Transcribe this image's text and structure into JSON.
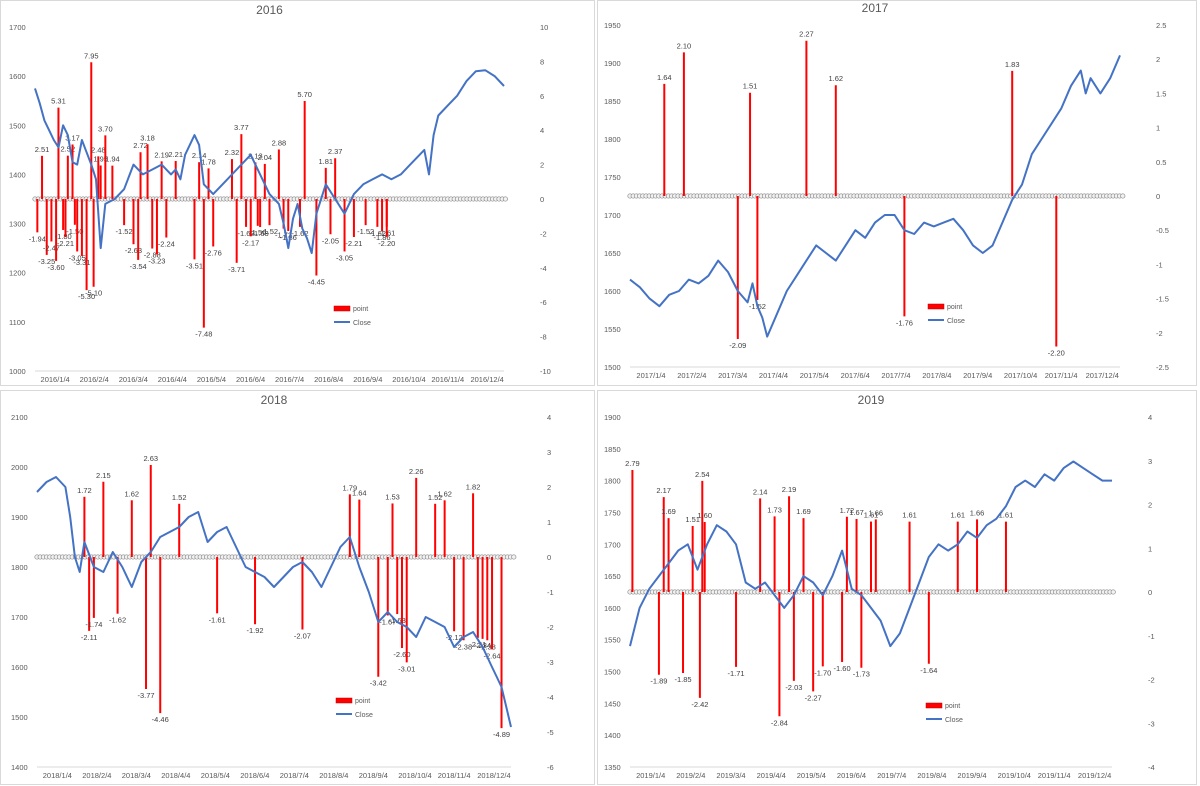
{
  "chart_data": [
    {
      "type": "line",
      "title": "2016",
      "x_ticks": [
        "2016/1/4",
        "2016/2/4",
        "2016/3/4",
        "2016/4/4",
        "2016/5/4",
        "2016/6/4",
        "2016/7/4",
        "2016/8/4",
        "2016/9/4",
        "2016/10/4",
        "2016/11/4",
        "2016/12/4"
      ],
      "y_left_ticks": [
        "1000",
        "1100",
        "1200",
        "1300",
        "1400",
        "1500",
        "1600",
        "1700"
      ],
      "y_right_ticks": [
        "-10",
        "-8",
        "-6",
        "-4",
        "-2",
        "0",
        "2",
        "4",
        "6",
        "8",
        "10"
      ],
      "ylim_left": [
        1000,
        1700
      ],
      "ylim_right": [
        -10,
        10
      ],
      "legend": [
        "point",
        "Close"
      ],
      "legend_position": "bottom-right",
      "colors": {
        "point": "#ff0000",
        "Close": "#4472c4"
      },
      "close_series": {
        "name": "Close",
        "x": [
          0,
          0.01,
          0.02,
          0.03,
          0.04,
          0.05,
          0.06,
          0.07,
          0.08,
          0.09,
          0.1,
          0.11,
          0.12,
          0.13,
          0.14,
          0.15,
          0.17,
          0.19,
          0.21,
          0.23,
          0.25,
          0.27,
          0.29,
          0.3,
          0.31,
          0.32,
          0.33,
          0.34,
          0.35,
          0.36,
          0.38,
          0.4,
          0.42,
          0.44,
          0.46,
          0.48,
          0.5,
          0.52,
          0.53,
          0.54,
          0.55,
          0.56,
          0.57,
          0.58,
          0.59,
          0.6,
          0.62,
          0.64,
          0.66,
          0.68,
          0.7,
          0.72,
          0.74,
          0.76,
          0.78,
          0.8,
          0.82,
          0.83,
          0.84,
          0.85,
          0.86,
          0.88,
          0.9,
          0.92,
          0.94,
          0.96,
          0.98,
          1
        ],
        "values": [
          1575,
          1545,
          1510,
          1490,
          1470,
          1455,
          1500,
          1480,
          1425,
          1420,
          1470,
          1445,
          1420,
          1390,
          1250,
          1340,
          1350,
          1370,
          1420,
          1400,
          1410,
          1420,
          1400,
          1410,
          1390,
          1440,
          1460,
          1480,
          1460,
          1380,
          1360,
          1380,
          1400,
          1420,
          1440,
          1400,
          1360,
          1340,
          1300,
          1250,
          1310,
          1340,
          1290,
          1270,
          1240,
          1320,
          1380,
          1350,
          1320,
          1360,
          1380,
          1390,
          1400,
          1390,
          1400,
          1420,
          1440,
          1450,
          1400,
          1480,
          1520,
          1540,
          1560,
          1590,
          1610,
          1612,
          1600,
          1580
        ]
      },
      "point_series": {
        "name": "point",
        "x": [
          0.005,
          0.015,
          0.025,
          0.035,
          0.045,
          0.05,
          0.06,
          0.065,
          0.07,
          0.08,
          0.085,
          0.09,
          0.1,
          0.11,
          0.12,
          0.125,
          0.135,
          0.14,
          0.15,
          0.165,
          0.19,
          0.21,
          0.22,
          0.225,
          0.24,
          0.25,
          0.26,
          0.27,
          0.28,
          0.3,
          0.34,
          0.35,
          0.36,
          0.37,
          0.38,
          0.42,
          0.43,
          0.44,
          0.45,
          0.46,
          0.47,
          0.475,
          0.48,
          0.49,
          0.5,
          0.52,
          0.53,
          0.54,
          0.565,
          0.575,
          0.6,
          0.62,
          0.63,
          0.64,
          0.66,
          0.68,
          0.705,
          0.73,
          0.74,
          0.75,
          0.75
        ],
        "values": [
          -1.94,
          2.51,
          -3.25,
          -2.47,
          -3.6,
          5.31,
          -1.8,
          -2.21,
          2.52,
          3.17,
          -1.5,
          -3.05,
          -3.31,
          -5.3,
          7.95,
          -5.1,
          2.48,
          1.95,
          3.7,
          1.94,
          -1.52,
          -2.63,
          -3.54,
          2.72,
          3.18,
          -2.88,
          -3.23,
          2.19,
          -2.24,
          2.21,
          -3.51,
          2.14,
          -7.48,
          1.78,
          -2.76,
          2.32,
          -3.71,
          3.77,
          -1.62,
          -2.17,
          2.13,
          -1.56,
          -1.63,
          2.04,
          -1.52,
          2.88,
          -1.72,
          -1.86,
          -1.62,
          5.7,
          -4.45,
          1.81,
          -2.05,
          2.37,
          -3.05,
          -2.21,
          -1.52,
          -1.62,
          -1.86,
          -1.61,
          -2.2
        ],
        "labels": [
          "-1.94",
          "2.51",
          "-3.25",
          "-2.47",
          "-3.60",
          "5.31",
          "-1.80",
          "-2.21",
          "2.52",
          "3.17",
          "-1.50",
          "-3.05",
          "-3.31",
          "-5.30",
          "7.95",
          "-5.10",
          "2.48",
          "1.95",
          "3.70",
          "1.94",
          "-1.52",
          "-2.63",
          "-3.54",
          "2.72",
          "3.18",
          "-2.88",
          "-3.23",
          "2.19",
          "-2.24",
          "2.21",
          "-3.51",
          "2.14",
          "-7.48",
          "1.78",
          "-2.76",
          "2.32",
          "-3.71",
          "3.77",
          "-1.62",
          "-2.17",
          "2.13",
          "-1.56",
          "-1.63",
          "2.04",
          "-1.52",
          "2.88",
          "-1.72",
          "-1.86",
          "-1.62",
          "5.70",
          "-4.45",
          "1.81",
          "-2.05",
          "2.37",
          "-3.05",
          "-2.21",
          "-1.52",
          "-1.62",
          "-1.86",
          "-1.61",
          "-2.20"
        ]
      }
    },
    {
      "type": "line",
      "title": "2017",
      "x_ticks": [
        "2017/1/4",
        "2017/2/4",
        "2017/3/4",
        "2017/4/4",
        "2017/5/4",
        "2017/6/4",
        "2017/7/4",
        "2017/8/4",
        "2017/9/4",
        "2017/10/4",
        "2017/11/4",
        "2017/12/4"
      ],
      "y_left_ticks": [
        "1500",
        "1550",
        "1600",
        "1650",
        "1700",
        "1750",
        "1800",
        "1850",
        "1900",
        "1950"
      ],
      "y_right_ticks": [
        "-2.5",
        "-2",
        "-1.5",
        "-1",
        "-0.5",
        "0",
        "0.5",
        "1",
        "1.5",
        "2",
        "2.5"
      ],
      "ylim_left": [
        1500,
        1950
      ],
      "ylim_right": [
        -2.5,
        2.5
      ],
      "legend": [
        "point",
        "Close"
      ],
      "legend_position": "bottom-right",
      "colors": {
        "point": "#ff0000",
        "Close": "#4472c4"
      },
      "close_series": {
        "name": "Close",
        "x": [
          0,
          0.02,
          0.04,
          0.06,
          0.08,
          0.1,
          0.12,
          0.14,
          0.16,
          0.18,
          0.2,
          0.22,
          0.24,
          0.25,
          0.26,
          0.27,
          0.28,
          0.3,
          0.32,
          0.34,
          0.36,
          0.38,
          0.4,
          0.42,
          0.44,
          0.46,
          0.48,
          0.5,
          0.52,
          0.54,
          0.56,
          0.58,
          0.6,
          0.62,
          0.64,
          0.66,
          0.68,
          0.7,
          0.72,
          0.74,
          0.76,
          0.78,
          0.8,
          0.82,
          0.84,
          0.86,
          0.88,
          0.9,
          0.92,
          0.93,
          0.94,
          0.96,
          0.98,
          1
        ],
        "values": [
          1615,
          1605,
          1590,
          1580,
          1595,
          1600,
          1615,
          1610,
          1620,
          1640,
          1625,
          1600,
          1585,
          1610,
          1580,
          1565,
          1540,
          1570,
          1600,
          1620,
          1640,
          1660,
          1650,
          1640,
          1660,
          1680,
          1670,
          1690,
          1700,
          1700,
          1680,
          1675,
          1690,
          1685,
          1690,
          1695,
          1680,
          1660,
          1650,
          1660,
          1690,
          1720,
          1740,
          1780,
          1800,
          1820,
          1840,
          1870,
          1890,
          1860,
          1880,
          1860,
          1880,
          1910
        ]
      },
      "point_series": {
        "name": "point",
        "x": [
          0.07,
          0.11,
          0.22,
          0.245,
          0.26,
          0.36,
          0.42,
          0.56,
          0.78,
          0.87
        ],
        "values": [
          1.64,
          2.1,
          -2.09,
          1.51,
          -1.52,
          2.27,
          1.62,
          -1.76,
          1.83,
          -2.2
        ],
        "labels": [
          "1.64",
          "2.10",
          "-2.09",
          "1.51",
          "-1.52",
          "2.27",
          "1.62",
          "-1.76",
          "1.83",
          "-2.20"
        ]
      }
    },
    {
      "type": "line",
      "title": "2018",
      "x_ticks": [
        "2018/1/4",
        "2018/2/4",
        "2018/3/4",
        "2018/4/4",
        "2018/5/4",
        "2018/6/4",
        "2018/7/4",
        "2018/8/4",
        "2018/9/4",
        "2018/10/4",
        "2018/11/4",
        "2018/12/4"
      ],
      "y_left_ticks": [
        "1400",
        "1500",
        "1600",
        "1700",
        "1800",
        "1900",
        "2000",
        "2100"
      ],
      "y_right_ticks": [
        "-6",
        "-5",
        "-4",
        "-3",
        "-2",
        "-1",
        "0",
        "1",
        "2",
        "3",
        "4"
      ],
      "ylim_left": [
        1400,
        2100
      ],
      "ylim_right": [
        -6,
        4
      ],
      "legend": [
        "point",
        "Close"
      ],
      "legend_position": "bottom-right",
      "colors": {
        "point": "#ff0000",
        "Close": "#4472c4"
      },
      "close_series": {
        "name": "Close",
        "x": [
          0,
          0.02,
          0.04,
          0.06,
          0.07,
          0.08,
          0.09,
          0.1,
          0.12,
          0.14,
          0.16,
          0.18,
          0.2,
          0.22,
          0.24,
          0.26,
          0.28,
          0.3,
          0.32,
          0.34,
          0.36,
          0.38,
          0.4,
          0.42,
          0.44,
          0.46,
          0.48,
          0.5,
          0.52,
          0.54,
          0.56,
          0.58,
          0.6,
          0.62,
          0.64,
          0.66,
          0.68,
          0.7,
          0.72,
          0.74,
          0.76,
          0.78,
          0.8,
          0.82,
          0.84,
          0.86,
          0.88,
          0.9,
          0.92,
          0.94,
          0.96,
          0.97,
          0.98,
          0.99,
          1
        ],
        "values": [
          1950,
          1970,
          1980,
          1960,
          1900,
          1820,
          1790,
          1850,
          1800,
          1790,
          1830,
          1800,
          1760,
          1810,
          1830,
          1860,
          1870,
          1880,
          1900,
          1910,
          1850,
          1870,
          1880,
          1840,
          1800,
          1790,
          1780,
          1760,
          1780,
          1800,
          1810,
          1790,
          1760,
          1800,
          1840,
          1860,
          1800,
          1750,
          1690,
          1710,
          1690,
          1680,
          1660,
          1700,
          1690,
          1680,
          1640,
          1660,
          1670,
          1640,
          1600,
          1580,
          1560,
          1520,
          1480
        ]
      },
      "point_series": {
        "name": "point",
        "x": [
          0.1,
          0.11,
          0.12,
          0.14,
          0.17,
          0.2,
          0.23,
          0.24,
          0.26,
          0.3,
          0.38,
          0.46,
          0.56,
          0.66,
          0.68,
          0.72,
          0.74,
          0.75,
          0.76,
          0.77,
          0.78,
          0.8,
          0.84,
          0.86,
          0.88,
          0.9,
          0.92,
          0.93,
          0.94,
          0.95,
          0.96,
          0.98
        ],
        "values": [
          1.72,
          -2.11,
          -1.74,
          2.15,
          -1.62,
          1.62,
          -3.77,
          2.63,
          -4.46,
          1.52,
          -1.61,
          -1.92,
          -2.07,
          1.79,
          1.64,
          -3.42,
          -1.67,
          1.53,
          -1.63,
          -2.6,
          -3.01,
          2.26,
          1.52,
          1.62,
          -2.12,
          -2.38,
          1.82,
          -2.31,
          -2.34,
          -2.38,
          -2.64,
          -4.89
        ],
        "labels": [
          "1.72",
          "-2.11",
          "-1.74",
          "2.15",
          "-1.62",
          "1.62",
          "-3.77",
          "2.63",
          "-4.46",
          "1.52",
          "-1.61",
          "-1.92",
          "-2.07",
          "1.79",
          "1.64",
          "-3.42",
          "-1.67",
          "1.53",
          "-1.63",
          "-2.60",
          "-3.01",
          "2.26",
          "1.52",
          "1.62",
          "-2.12",
          "-2.38",
          "1.82",
          "-2.31",
          "-2.34",
          "-2.38",
          "-2.64",
          "-4.89"
        ]
      }
    },
    {
      "type": "line",
      "title": "2019",
      "x_ticks": [
        "2019/1/4",
        "2019/2/4",
        "2019/3/4",
        "2019/4/4",
        "2019/5/4",
        "2019/6/4",
        "2019/7/4",
        "2019/8/4",
        "2019/9/4",
        "2019/10/4",
        "2019/11/4",
        "2019/12/4"
      ],
      "y_left_ticks": [
        "1350",
        "1400",
        "1450",
        "1500",
        "1550",
        "1600",
        "1650",
        "1700",
        "1750",
        "1800",
        "1850",
        "1900"
      ],
      "y_right_ticks": [
        "-4",
        "-3",
        "-2",
        "-1",
        "0",
        "1",
        "2",
        "3",
        "4"
      ],
      "ylim_left": [
        1350,
        1900
      ],
      "ylim_right": [
        -4,
        4
      ],
      "legend": [
        "point",
        "Close"
      ],
      "legend_position": "bottom-center",
      "colors": {
        "point": "#ff0000",
        "Close": "#4472c4"
      },
      "close_series": {
        "name": "Close",
        "x": [
          0,
          0.02,
          0.04,
          0.06,
          0.08,
          0.1,
          0.12,
          0.14,
          0.16,
          0.18,
          0.2,
          0.22,
          0.24,
          0.26,
          0.28,
          0.3,
          0.32,
          0.34,
          0.36,
          0.38,
          0.4,
          0.42,
          0.44,
          0.46,
          0.48,
          0.5,
          0.52,
          0.54,
          0.56,
          0.58,
          0.6,
          0.62,
          0.64,
          0.66,
          0.68,
          0.7,
          0.72,
          0.74,
          0.76,
          0.78,
          0.8,
          0.82,
          0.84,
          0.86,
          0.88,
          0.9,
          0.92,
          0.94,
          0.96,
          0.98,
          1
        ],
        "values": [
          1540,
          1600,
          1630,
          1650,
          1670,
          1690,
          1700,
          1660,
          1700,
          1730,
          1720,
          1700,
          1640,
          1630,
          1640,
          1620,
          1600,
          1620,
          1650,
          1640,
          1620,
          1650,
          1690,
          1630,
          1620,
          1600,
          1580,
          1540,
          1560,
          1600,
          1640,
          1680,
          1700,
          1690,
          1700,
          1720,
          1710,
          1730,
          1740,
          1760,
          1790,
          1800,
          1790,
          1810,
          1800,
          1820,
          1830,
          1820,
          1810,
          1800,
          1800
        ]
      },
      "point_series": {
        "name": "point",
        "x": [
          0.005,
          0.06,
          0.07,
          0.08,
          0.11,
          0.13,
          0.145,
          0.15,
          0.155,
          0.22,
          0.27,
          0.3,
          0.31,
          0.33,
          0.34,
          0.36,
          0.38,
          0.4,
          0.44,
          0.45,
          0.47,
          0.48,
          0.5,
          0.51,
          0.58,
          0.62,
          0.68,
          0.72,
          0.78
        ],
        "values": [
          2.79,
          -1.89,
          2.17,
          1.69,
          -1.85,
          1.51,
          -2.42,
          2.54,
          1.6,
          -1.71,
          2.14,
          1.73,
          -2.84,
          2.19,
          -2.03,
          1.69,
          -2.27,
          -1.7,
          -1.6,
          1.72,
          1.67,
          -1.73,
          1.61,
          1.66,
          1.61,
          -1.64,
          1.61,
          1.66,
          1.61
        ],
        "labels": [
          "2.79",
          "-1.89",
          "2.17",
          "1.69",
          "-1.85",
          "1.51",
          "-2.42",
          "2.54",
          "1.60",
          "-1.71",
          "2.14",
          "1.73",
          "-2.84",
          "2.19",
          "-2.03",
          "1.69",
          "-2.27",
          "-1.70",
          "-1.60",
          "1.72",
          "1.67",
          "-1.73",
          "1.61",
          "1.66",
          "1.61",
          "-1.64",
          "1.61",
          "1.66",
          "1.61"
        ]
      }
    }
  ]
}
